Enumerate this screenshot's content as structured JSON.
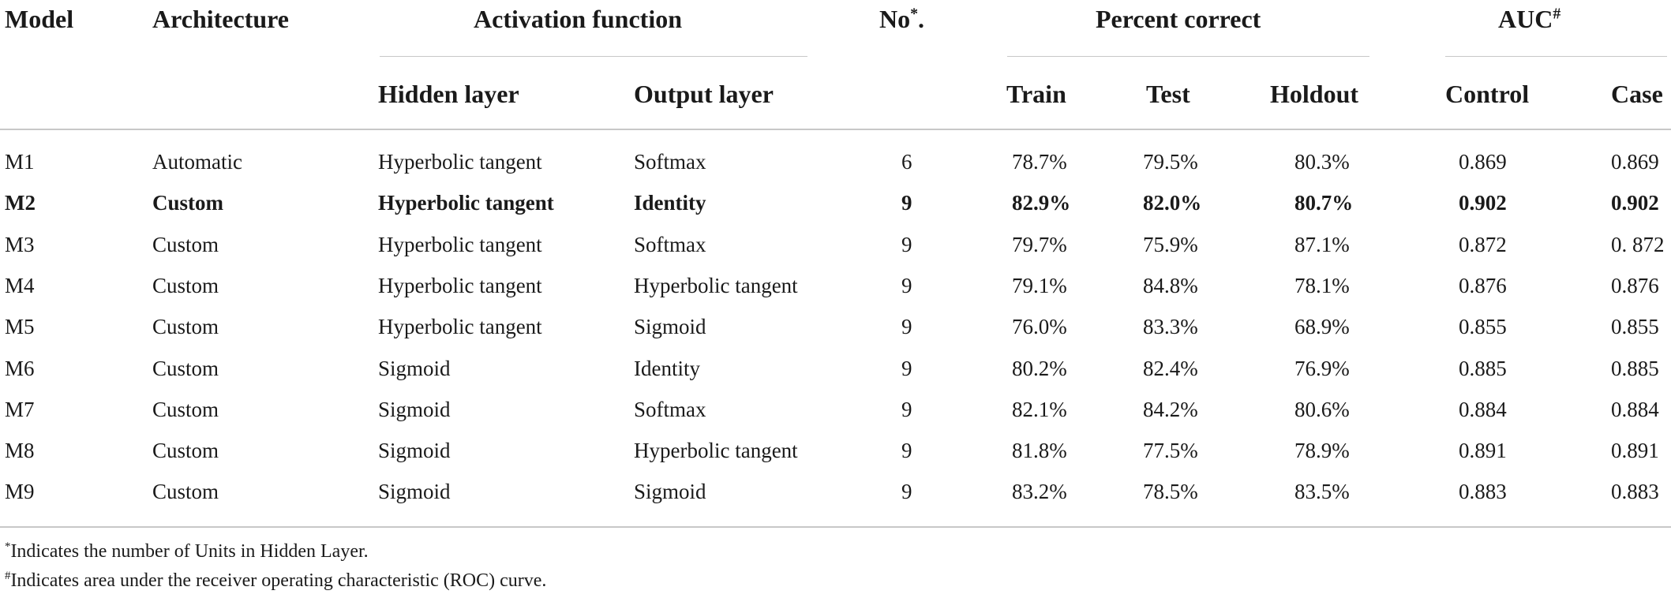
{
  "headers": {
    "model": "Model",
    "architecture": "Architecture",
    "activation_function": "Activation function",
    "hidden_layer": "Hidden layer",
    "output_layer": "Output layer",
    "no": "No",
    "no_mark": "*",
    "no_dot": ".",
    "percent_correct": "Percent correct",
    "train": "Train",
    "test": "Test",
    "holdout": "Holdout",
    "auc": "AUC",
    "auc_mark": "#",
    "control": "Control",
    "case": "Case"
  },
  "rows": [
    {
      "model": "M1",
      "architecture": "Automatic",
      "hidden": "Hyperbolic tangent",
      "output": "Softmax",
      "no": "6",
      "train": "78.7%",
      "test": "79.5%",
      "holdout": "80.3%",
      "control": "0.869",
      "case": "0.869",
      "bold": false
    },
    {
      "model": "M2",
      "architecture": "Custom",
      "hidden": "Hyperbolic tangent",
      "output": "Identity",
      "no": "9",
      "train": "82.9%",
      "test": "82.0%",
      "holdout": "80.7%",
      "control": "0.902",
      "case": "0.902",
      "bold": true
    },
    {
      "model": "M3",
      "architecture": "Custom",
      "hidden": "Hyperbolic tangent",
      "output": "Softmax",
      "no": "9",
      "train": "79.7%",
      "test": "75.9%",
      "holdout": "87.1%",
      "control": "0.872",
      "case": "0. 872",
      "bold": false
    },
    {
      "model": "M4",
      "architecture": "Custom",
      "hidden": "Hyperbolic tangent",
      "output": "Hyperbolic tangent",
      "no": "9",
      "train": "79.1%",
      "test": "84.8%",
      "holdout": "78.1%",
      "control": "0.876",
      "case": "0.876",
      "bold": false
    },
    {
      "model": "M5",
      "architecture": "Custom",
      "hidden": "Hyperbolic tangent",
      "output": "Sigmoid",
      "no": "9",
      "train": "76.0%",
      "test": "83.3%",
      "holdout": "68.9%",
      "control": "0.855",
      "case": "0.855",
      "bold": false
    },
    {
      "model": "M6",
      "architecture": "Custom",
      "hidden": "Sigmoid",
      "output": "Identity",
      "no": "9",
      "train": "80.2%",
      "test": "82.4%",
      "holdout": "76.9%",
      "control": "0.885",
      "case": "0.885",
      "bold": false
    },
    {
      "model": "M7",
      "architecture": "Custom",
      "hidden": "Sigmoid",
      "output": "Softmax",
      "no": "9",
      "train": "82.1%",
      "test": "84.2%",
      "holdout": "80.6%",
      "control": "0.884",
      "case": "0.884",
      "bold": false
    },
    {
      "model": "M8",
      "architecture": "Custom",
      "hidden": "Sigmoid",
      "output": "Hyperbolic tangent",
      "no": "9",
      "train": "81.8%",
      "test": "77.5%",
      "holdout": "78.9%",
      "control": "0.891",
      "case": "0.891",
      "bold": false
    },
    {
      "model": "M9",
      "architecture": "Custom",
      "hidden": "Sigmoid",
      "output": "Sigmoid",
      "no": "9",
      "train": "83.2%",
      "test": "78.5%",
      "holdout": "83.5%",
      "control": "0.883",
      "case": "0.883",
      "bold": false
    }
  ],
  "footnotes": [
    {
      "mark": "*",
      "text": "Indicates the number of Units in Hidden Layer."
    },
    {
      "mark": "#",
      "text": "Indicates area under the receiver operating characteristic (ROC) curve."
    }
  ]
}
